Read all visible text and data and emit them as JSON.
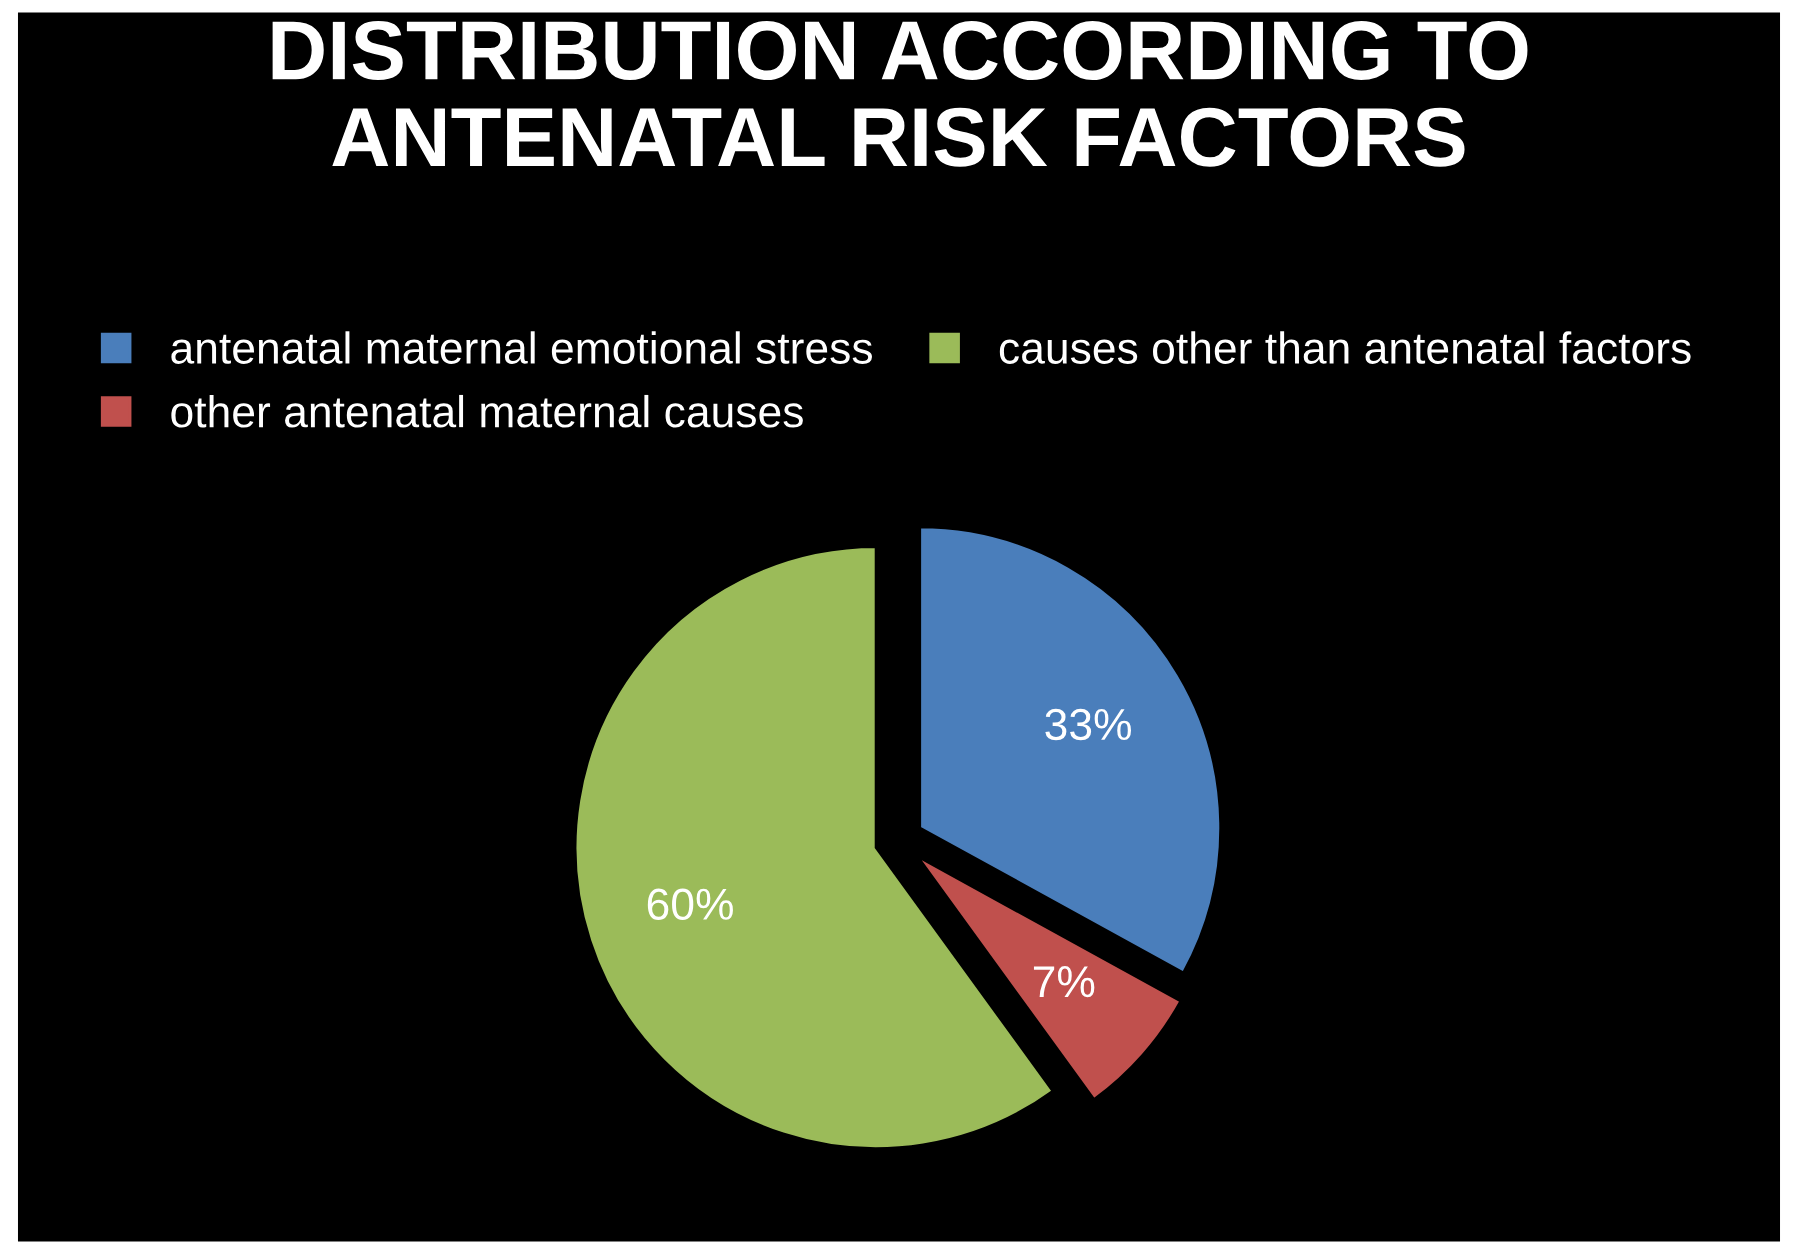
{
  "chart_data": {
    "type": "pie",
    "title": "DISTRIBUTION ACCORDING TO\nANTENATAL RISK FACTORS",
    "categories": [
      "antenatal maternal emotional stress",
      "other antenatal maternal causes",
      "causes other than antenatal factors"
    ],
    "values": [
      33,
      7,
      60
    ],
    "colors": [
      "#4a7ebb",
      "#c0504d",
      "#9bbb59"
    ],
    "value_labels": [
      "33%",
      "7%",
      "60%"
    ],
    "legend": "top"
  }
}
